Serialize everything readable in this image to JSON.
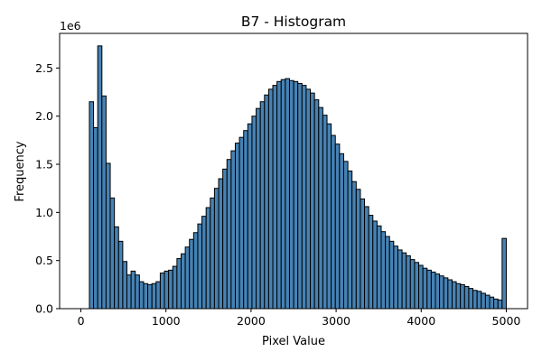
{
  "chart_data": {
    "type": "bar",
    "title": "B7 - Histogram",
    "xlabel": "Pixel Value",
    "ylabel": "Frequency",
    "y_offset_label": "1e6",
    "xlim": [
      -250,
      5250
    ],
    "ylim": [
      0,
      2.86
    ],
    "xticks": [
      0,
      1000,
      2000,
      3000,
      4000,
      5000
    ],
    "xtick_labels": [
      "0",
      "1000",
      "2000",
      "3000",
      "4000",
      "5000"
    ],
    "yticks": [
      0.0,
      0.5,
      1.0,
      1.5,
      2.0,
      2.5
    ],
    "ytick_labels": [
      "0.0",
      "0.5",
      "1.0",
      "1.5",
      "2.0",
      "2.5"
    ],
    "grid": false,
    "bar_color": "#4682b4",
    "edge_color": "#000000",
    "bin_range": [
      100,
      5000
    ],
    "bin_count": 100,
    "values": [
      2.15,
      1.88,
      2.73,
      2.21,
      1.51,
      1.15,
      0.85,
      0.7,
      0.49,
      0.35,
      0.39,
      0.35,
      0.28,
      0.26,
      0.25,
      0.26,
      0.28,
      0.37,
      0.39,
      0.4,
      0.44,
      0.52,
      0.57,
      0.64,
      0.72,
      0.79,
      0.88,
      0.96,
      1.05,
      1.15,
      1.25,
      1.35,
      1.45,
      1.55,
      1.64,
      1.72,
      1.78,
      1.85,
      1.92,
      2.0,
      2.08,
      2.15,
      2.22,
      2.28,
      2.32,
      2.36,
      2.38,
      2.39,
      2.37,
      2.36,
      2.34,
      2.32,
      2.28,
      2.24,
      2.17,
      2.09,
      2.01,
      1.92,
      1.8,
      1.71,
      1.61,
      1.53,
      1.43,
      1.32,
      1.24,
      1.14,
      1.06,
      0.97,
      0.91,
      0.86,
      0.8,
      0.75,
      0.7,
      0.65,
      0.61,
      0.58,
      0.55,
      0.51,
      0.48,
      0.45,
      0.42,
      0.4,
      0.38,
      0.36,
      0.34,
      0.32,
      0.3,
      0.28,
      0.26,
      0.25,
      0.23,
      0.21,
      0.19,
      0.18,
      0.16,
      0.14,
      0.12,
      0.1,
      0.09,
      0.73
    ]
  }
}
